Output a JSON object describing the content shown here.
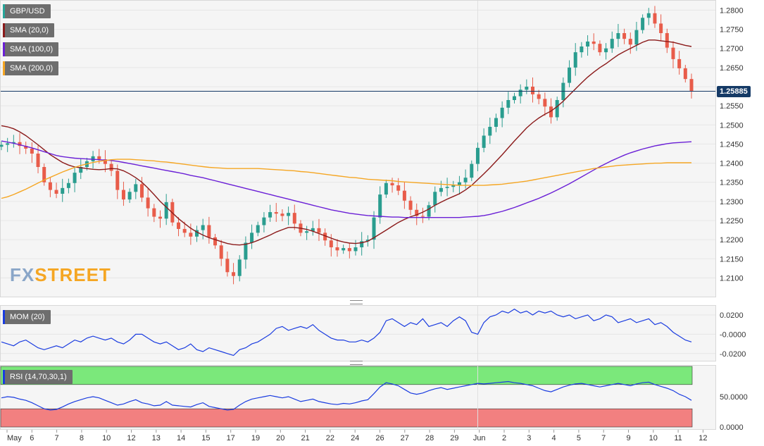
{
  "logo": {
    "part1": "FX",
    "part2": "STREET",
    "color1": "#8aa6c8",
    "color2": "#f5a623"
  },
  "legends": {
    "main": [
      {
        "label": "GBP/USD",
        "color": "#26a69a"
      },
      {
        "label": "SMA (20,0)",
        "color": "#8b1a1a"
      },
      {
        "label": "SMA (100,0)",
        "color": "#6a1fd6"
      },
      {
        "label": "SMA (200,0)",
        "color": "#f5a623"
      }
    ],
    "mom": {
      "label": "MOM (20)",
      "color": "#1a3ce0"
    },
    "rsi": {
      "label": "RSI (14,70,30,1)",
      "color": "#1a3ce0"
    }
  },
  "current_price": "1.25885",
  "colors": {
    "up": "#2a9d8f",
    "down": "#e85c4a",
    "sma20": "#8b1a1a",
    "sma100": "#6a1fd6",
    "sma200": "#f5a623",
    "mom": "#1a3ce0",
    "rsi": "#1a3ce0",
    "overbought": "#7be87b",
    "oversold": "#f28080"
  },
  "chart_data": [
    {
      "type": "line",
      "title": "GBP/USD",
      "ylim": [
        1.2075,
        1.281
      ],
      "y_ticks": [
        "1.2800",
        "1.2750",
        "1.2700",
        "1.2650",
        "1.2600",
        "1.2550",
        "1.2500",
        "1.2450",
        "1.2400",
        "1.2350",
        "1.2300",
        "1.2250",
        "1.2200",
        "1.2150",
        "1.2100"
      ],
      "x_ticks": [
        "May",
        "6",
        "7",
        "8",
        "10",
        "12",
        "13",
        "14",
        "15",
        "17",
        "19",
        "20",
        "21",
        "22",
        "24",
        "26",
        "27",
        "28",
        "29",
        "Jun",
        "2",
        "3",
        "4",
        "5",
        "7",
        "9",
        "10",
        "11",
        "12"
      ],
      "close": [
        1.2448,
        1.2452,
        1.2455,
        1.2445,
        1.2438,
        1.2425,
        1.239,
        1.235,
        1.233,
        1.232,
        1.2335,
        1.2348,
        1.2375,
        1.239,
        1.2405,
        1.2418,
        1.241,
        1.2398,
        1.238,
        1.233,
        1.2305,
        1.2325,
        1.2345,
        1.231,
        1.2282,
        1.226,
        1.2255,
        1.2298,
        1.2245,
        1.2228,
        1.2218,
        1.2208,
        1.2225,
        1.2238,
        1.2206,
        1.2185,
        1.215,
        1.2115,
        1.2105,
        1.2148,
        1.2192,
        1.2218,
        1.2238,
        1.2258,
        1.2272,
        1.2268,
        1.2262,
        1.227,
        1.2242,
        1.2218,
        1.2222,
        1.223,
        1.2218,
        1.2198,
        1.218,
        1.2172,
        1.2178,
        1.217,
        1.218,
        1.2196,
        1.22,
        1.2258,
        1.2318,
        1.2348,
        1.2342,
        1.2328,
        1.2302,
        1.2278,
        1.2262,
        1.226,
        1.229,
        1.2325,
        1.2335,
        1.2338,
        1.2342,
        1.235,
        1.2362,
        1.2398,
        1.244,
        1.2472,
        1.2495,
        1.2518,
        1.2545,
        1.2565,
        1.2575,
        1.2592,
        1.26,
        1.258,
        1.2568,
        1.2548,
        1.252,
        1.2565,
        1.261,
        1.265,
        1.269,
        1.2705,
        1.2718,
        1.2712,
        1.269,
        1.27,
        1.2725,
        1.274,
        1.2725,
        1.271,
        1.2748,
        1.278,
        1.2792,
        1.2765,
        1.274,
        1.2702,
        1.2672,
        1.2648,
        1.262,
        1.2588
      ],
      "series": [
        {
          "name": "SMA (20,0)",
          "values": [
            1.2498,
            1.2495,
            1.249,
            1.2482,
            1.2472,
            1.246,
            1.2448,
            1.2435,
            1.2422,
            1.2412,
            1.2402,
            1.2395,
            1.239,
            1.2388,
            1.2386,
            1.2384,
            1.2383,
            1.2384,
            1.2386,
            1.2385,
            1.238,
            1.2372,
            1.2362,
            1.235,
            1.2335,
            1.2318,
            1.23,
            1.2285,
            1.227,
            1.2255,
            1.2242,
            1.223,
            1.222,
            1.2212,
            1.2205,
            1.22,
            1.2195,
            1.219,
            1.2187,
            1.2186,
            1.2188,
            1.2192,
            1.2198,
            1.2205,
            1.2212,
            1.222,
            1.2226,
            1.2232,
            1.2232,
            1.223,
            1.2227,
            1.2222,
            1.2216,
            1.221,
            1.2204,
            1.2198,
            1.2194,
            1.2191,
            1.219,
            1.2192,
            1.2196,
            1.2205,
            1.2215,
            1.2225,
            1.2235,
            1.2245,
            1.2253,
            1.226,
            1.2265,
            1.2272,
            1.228,
            1.229,
            1.2298,
            1.2306,
            1.2313,
            1.232,
            1.233,
            1.2342,
            1.2357,
            1.2372,
            1.2388,
            1.2405,
            1.2422,
            1.244,
            1.2458,
            1.2475,
            1.2492,
            1.2506,
            1.2518,
            1.2528,
            1.2536,
            1.2548,
            1.2562,
            1.2578,
            1.2594,
            1.261,
            1.2625,
            1.2638,
            1.265,
            1.266,
            1.2672,
            1.2683,
            1.2692,
            1.27,
            1.2708,
            1.2716,
            1.2722,
            1.2722,
            1.272,
            1.2718,
            1.2716,
            1.2712,
            1.2708,
            1.2705
          ]
        },
        {
          "name": "SMA (100,0)",
          "values": [
            1.2458,
            1.2455,
            1.2452,
            1.2448,
            1.2444,
            1.244,
            1.2435,
            1.243,
            1.2425,
            1.242,
            1.2417,
            1.2415,
            1.2413,
            1.2412,
            1.2411,
            1.241,
            1.2409,
            1.2408,
            1.2407,
            1.2405,
            1.2402,
            1.2399,
            1.2396,
            1.2393,
            1.239,
            1.2387,
            1.2384,
            1.2381,
            1.2378,
            1.2375,
            1.2372,
            1.2368,
            1.2365,
            1.2362,
            1.2358,
            1.2354,
            1.235,
            1.2346,
            1.2342,
            1.2338,
            1.2334,
            1.233,
            1.2326,
            1.2322,
            1.2318,
            1.2314,
            1.231,
            1.2306,
            1.2302,
            1.2298,
            1.2294,
            1.229,
            1.2286,
            1.2282,
            1.2278,
            1.2275,
            1.2272,
            1.2269,
            1.2267,
            1.2265,
            1.2263,
            1.2262,
            1.2261,
            1.226,
            1.2259,
            1.2259,
            1.2258,
            1.2258,
            1.2258,
            1.2258,
            1.2258,
            1.2258,
            1.2258,
            1.2258,
            1.2258,
            1.2258,
            1.2259,
            1.226,
            1.2261,
            1.2263,
            1.2266,
            1.227,
            1.2274,
            1.2279,
            1.2284,
            1.229,
            1.2296,
            1.2302,
            1.2308,
            1.2315,
            1.2322,
            1.233,
            1.2338,
            1.2346,
            1.2355,
            1.2364,
            1.2373,
            1.2382,
            1.2391,
            1.2399,
            1.2407,
            1.2414,
            1.2421,
            1.2427,
            1.2432,
            1.2437,
            1.2441,
            1.2445,
            1.2448,
            1.2451,
            1.2453,
            1.2454,
            1.2455,
            1.2456
          ]
        },
        {
          "name": "SMA (200,0)",
          "values": [
            1.2308,
            1.2312,
            1.2318,
            1.2325,
            1.2332,
            1.234,
            1.2348,
            1.2356,
            1.2363,
            1.237,
            1.2377,
            1.2383,
            1.2389,
            1.2394,
            1.2398,
            1.2402,
            1.2405,
            1.2407,
            1.2409,
            1.241,
            1.241,
            1.241,
            1.2409,
            1.2408,
            1.2407,
            1.2406,
            1.2404,
            1.2403,
            1.2401,
            1.2399,
            1.2397,
            1.2395,
            1.2393,
            1.2391,
            1.2389,
            1.2388,
            1.2387,
            1.2386,
            1.2386,
            1.2386,
            1.2386,
            1.2386,
            1.2386,
            1.2385,
            1.2384,
            1.2383,
            1.2382,
            1.2381,
            1.238,
            1.2378,
            1.2377,
            1.2375,
            1.2373,
            1.2371,
            1.2369,
            1.2367,
            1.2365,
            1.2363,
            1.2362,
            1.236,
            1.2358,
            1.2357,
            1.2356,
            1.2355,
            1.2354,
            1.2352,
            1.2351,
            1.235,
            1.2349,
            1.2348,
            1.2347,
            1.2346,
            1.2345,
            1.2344,
            1.2343,
            1.2342,
            1.2342,
            1.2342,
            1.2342,
            1.2342,
            1.2343,
            1.2344,
            1.2345,
            1.2347,
            1.2349,
            1.2351,
            1.2353,
            1.2356,
            1.2359,
            1.2362,
            1.2365,
            1.2368,
            1.2371,
            1.2374,
            1.2377,
            1.238,
            1.2383,
            1.2386,
            1.2388,
            1.239,
            1.2392,
            1.2394,
            1.2395,
            1.2396,
            1.2397,
            1.2398,
            1.2399,
            1.24,
            1.24,
            1.2401,
            1.2401,
            1.2401,
            1.2401,
            1.2401
          ]
        }
      ]
    },
    {
      "type": "line",
      "title": "MOM (20)",
      "ylim": [
        -0.026,
        0.028
      ],
      "y_ticks": [
        "0.0200",
        "-0.0000",
        "-0.0200"
      ],
      "series": [
        {
          "name": "MOM (20)",
          "values": [
            -0.008,
            -0.01,
            -0.012,
            -0.008,
            -0.006,
            -0.01,
            -0.014,
            -0.016,
            -0.014,
            -0.012,
            -0.014,
            -0.01,
            -0.006,
            -0.008,
            -0.004,
            -0.002,
            -0.004,
            -0.006,
            -0.004,
            -0.008,
            -0.01,
            -0.006,
            0.0,
            0.0,
            -0.004,
            -0.008,
            -0.01,
            -0.008,
            -0.012,
            -0.016,
            -0.014,
            -0.01,
            -0.016,
            -0.018,
            -0.014,
            -0.016,
            -0.018,
            -0.02,
            -0.022,
            -0.016,
            -0.014,
            -0.01,
            -0.008,
            -0.004,
            0.0,
            0.006,
            0.008,
            0.004,
            0.006,
            0.008,
            0.006,
            0.01,
            0.004,
            0.0,
            -0.004,
            -0.006,
            -0.006,
            -0.008,
            -0.008,
            -0.006,
            -0.008,
            -0.004,
            0.002,
            0.014,
            0.016,
            0.012,
            0.008,
            0.012,
            0.01,
            0.016,
            0.008,
            0.01,
            0.012,
            0.008,
            0.014,
            0.018,
            0.014,
            0.002,
            0.0,
            0.012,
            0.018,
            0.02,
            0.024,
            0.022,
            0.026,
            0.022,
            0.024,
            0.02,
            0.024,
            0.022,
            0.024,
            0.02,
            0.018,
            0.02,
            0.016,
            0.018,
            0.02,
            0.014,
            0.016,
            0.02,
            0.018,
            0.012,
            0.014,
            0.016,
            0.012,
            0.014,
            0.016,
            0.01,
            0.012,
            0.008,
            0.002,
            -0.002,
            -0.006,
            -0.008
          ]
        }
      ]
    },
    {
      "type": "line",
      "title": "RSI (14,70,30,1)",
      "ylim": [
        0,
        100
      ],
      "y_ticks": [
        "50.0000",
        "0.0000"
      ],
      "bands": {
        "overbought": 70,
        "oversold": 30
      },
      "series": [
        {
          "name": "RSI (14,70,30,1)",
          "values": [
            48,
            50,
            49,
            46,
            44,
            40,
            35,
            30,
            28,
            29,
            33,
            38,
            42,
            45,
            48,
            50,
            48,
            44,
            40,
            36,
            38,
            42,
            45,
            40,
            38,
            35,
            36,
            42,
            36,
            35,
            34,
            33,
            37,
            40,
            34,
            32,
            30,
            28,
            29,
            36,
            42,
            46,
            48,
            50,
            52,
            50,
            48,
            50,
            46,
            42,
            44,
            46,
            42,
            40,
            38,
            37,
            39,
            38,
            40,
            43,
            45,
            55,
            66,
            73,
            71,
            68,
            62,
            56,
            54,
            56,
            60,
            63,
            65,
            62,
            64,
            66,
            68,
            70,
            72,
            71,
            72,
            73,
            74,
            75,
            73,
            72,
            70,
            68,
            64,
            60,
            58,
            62,
            66,
            69,
            71,
            72,
            70,
            68,
            66,
            68,
            70,
            72,
            70,
            68,
            71,
            73,
            74,
            70,
            67,
            64,
            60,
            54,
            50,
            44
          ]
        }
      ]
    }
  ]
}
